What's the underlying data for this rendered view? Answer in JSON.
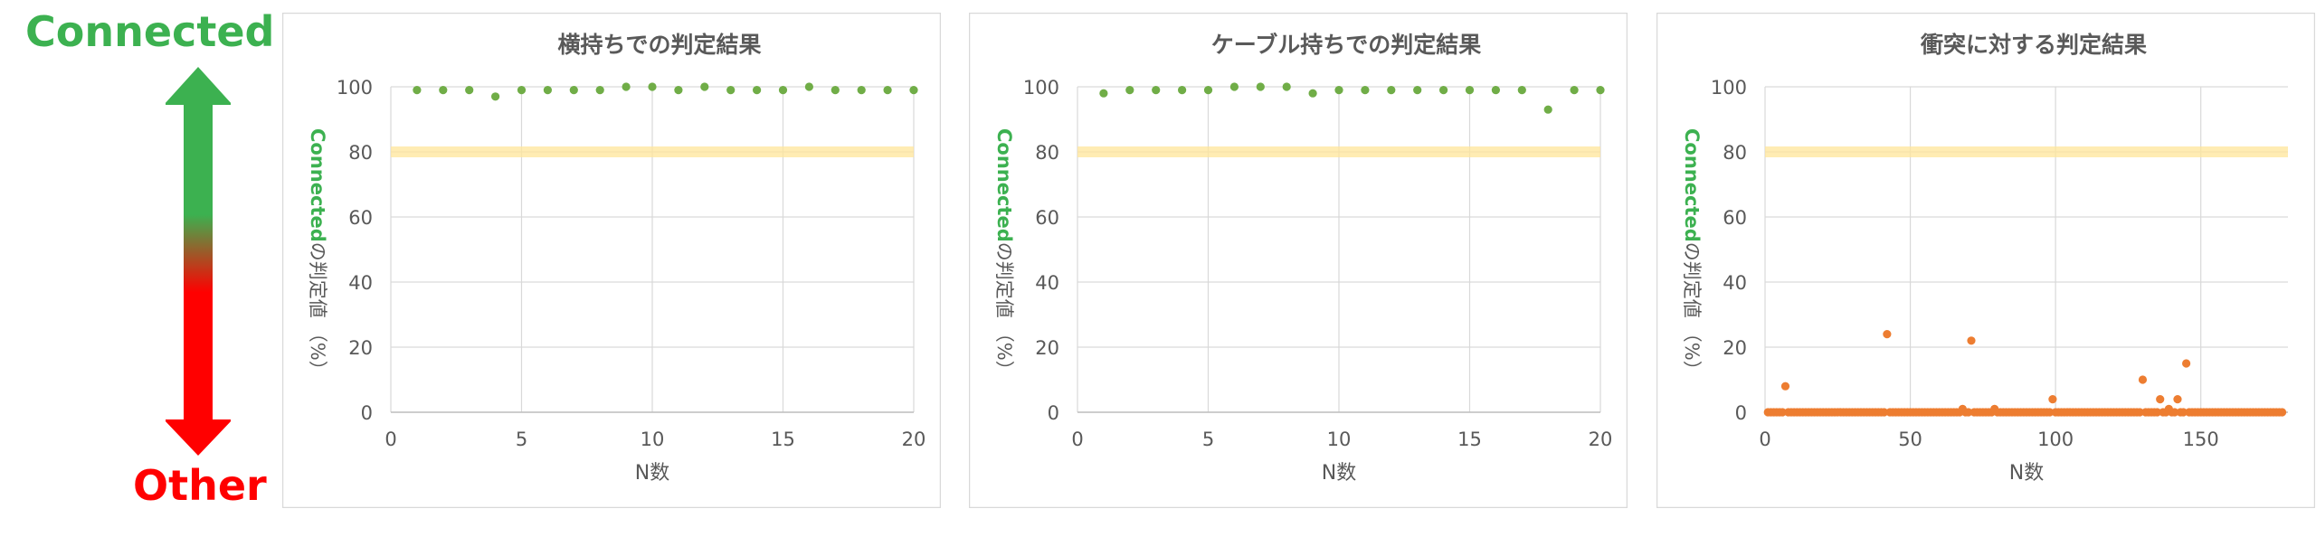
{
  "scale": {
    "top_label": "Connected",
    "bottom_label": "Other",
    "top_color": "#3cb150",
    "bottom_color": "#ff0000"
  },
  "threshold_color": "#ffe699",
  "chart_data": [
    {
      "type": "scatter",
      "title": "横持ちでの判定結果",
      "xlabel": "N数",
      "ylabel_prefix": "Connected",
      "ylabel_suffix": "の判定値",
      "ylabel_paren": "（%）",
      "xlim": [
        0,
        20
      ],
      "ylim": [
        0,
        100
      ],
      "xticks": [
        0,
        5,
        10,
        15,
        20
      ],
      "yticks": [
        0,
        20,
        40,
        60,
        80,
        100
      ],
      "threshold": 80,
      "grid": true,
      "marker_color": "#70ad47",
      "x": [
        1,
        2,
        3,
        4,
        5,
        6,
        7,
        8,
        9,
        10,
        11,
        12,
        13,
        14,
        15,
        16,
        17,
        18,
        19,
        20
      ],
      "y": [
        99,
        99,
        99,
        97,
        99,
        99,
        99,
        99,
        100,
        100,
        99,
        100,
        99,
        99,
        99,
        100,
        99,
        99,
        99,
        99
      ]
    },
    {
      "type": "scatter",
      "title": "ケーブル持ちでの判定結果",
      "xlabel": "N数",
      "ylabel_prefix": "Connected",
      "ylabel_suffix": "の判定値",
      "ylabel_paren": "（%）",
      "xlim": [
        0,
        20
      ],
      "ylim": [
        0,
        100
      ],
      "xticks": [
        0,
        5,
        10,
        15,
        20
      ],
      "yticks": [
        0,
        20,
        40,
        60,
        80,
        100
      ],
      "threshold": 80,
      "grid": true,
      "marker_color": "#70ad47",
      "x": [
        1,
        2,
        3,
        4,
        5,
        6,
        7,
        8,
        9,
        10,
        11,
        12,
        13,
        14,
        15,
        16,
        17,
        18,
        19,
        20
      ],
      "y": [
        98,
        99,
        99,
        99,
        99,
        100,
        100,
        100,
        98,
        99,
        99,
        99,
        99,
        99,
        99,
        99,
        99,
        93,
        99,
        99
      ]
    },
    {
      "type": "scatter",
      "title": "衝突に対する判定結果",
      "xlabel": "N数",
      "ylabel_prefix": "Connected",
      "ylabel_suffix": "の判定値",
      "ylabel_paren": "（%）",
      "xlim": [
        0,
        180
      ],
      "ylim": [
        0,
        100
      ],
      "xticks": [
        0,
        50,
        100,
        150
      ],
      "yticks": [
        0,
        20,
        40,
        60,
        80,
        100
      ],
      "threshold": 80,
      "grid": true,
      "marker_color": "#ed7d31",
      "x": [
        1,
        2,
        3,
        4,
        5,
        6,
        7,
        8,
        9,
        10,
        11,
        12,
        13,
        14,
        15,
        16,
        17,
        18,
        19,
        20,
        21,
        22,
        23,
        24,
        25,
        26,
        27,
        28,
        29,
        30,
        31,
        32,
        33,
        34,
        35,
        36,
        37,
        38,
        39,
        40,
        41,
        42,
        43,
        44,
        45,
        46,
        47,
        48,
        49,
        50,
        51,
        52,
        53,
        54,
        55,
        56,
        57,
        58,
        59,
        60,
        61,
        62,
        63,
        64,
        65,
        66,
        67,
        68,
        69,
        70,
        71,
        72,
        73,
        74,
        75,
        76,
        77,
        78,
        79,
        80,
        81,
        82,
        83,
        84,
        85,
        86,
        87,
        88,
        89,
        90,
        91,
        92,
        93,
        94,
        95,
        96,
        97,
        98,
        99,
        100,
        101,
        102,
        103,
        104,
        105,
        106,
        107,
        108,
        109,
        110,
        111,
        112,
        113,
        114,
        115,
        116,
        117,
        118,
        119,
        120,
        121,
        122,
        123,
        124,
        125,
        126,
        127,
        128,
        129,
        130,
        131,
        132,
        133,
        134,
        135,
        136,
        137,
        138,
        139,
        140,
        141,
        142,
        143,
        144,
        145,
        146,
        147,
        148,
        149,
        150,
        151,
        152,
        153,
        154,
        155,
        156,
        157,
        158,
        159,
        160,
        161,
        162,
        163,
        164,
        165,
        166,
        167,
        168,
        169,
        170,
        171,
        172,
        173,
        174,
        175,
        176,
        177,
        178
      ],
      "y": [
        0,
        0,
        0,
        0,
        0,
        0,
        8,
        0,
        0,
        0,
        0,
        0,
        0,
        0,
        0,
        0,
        0,
        0,
        0,
        0,
        0,
        0,
        0,
        0,
        0,
        0,
        0,
        0,
        0,
        0,
        0,
        0,
        0,
        0,
        0,
        0,
        0,
        0,
        0,
        0,
        0,
        24,
        0,
        0,
        0,
        0,
        0,
        0,
        0,
        0,
        0,
        0,
        0,
        0,
        0,
        0,
        0,
        0,
        0,
        0,
        0,
        0,
        0,
        0,
        0,
        0,
        0,
        1,
        0,
        0,
        22,
        0,
        0,
        0,
        0,
        0,
        0,
        0,
        1,
        0,
        0,
        0,
        0,
        0,
        0,
        0,
        0,
        0,
        0,
        0,
        0,
        0,
        0,
        0,
        0,
        0,
        0,
        0,
        4,
        0,
        0,
        0,
        0,
        0,
        0,
        0,
        0,
        0,
        0,
        0,
        0,
        0,
        0,
        0,
        0,
        0,
        0,
        0,
        0,
        0,
        0,
        0,
        0,
        0,
        0,
        0,
        0,
        0,
        0,
        10,
        0,
        0,
        0,
        0,
        0,
        4,
        0,
        0,
        1,
        0,
        0,
        4,
        0,
        0,
        15,
        0,
        0,
        0,
        0,
        0,
        0,
        0,
        0,
        0,
        0,
        0,
        0,
        0,
        0,
        0,
        0,
        0,
        0,
        0,
        0,
        0,
        0,
        0,
        0,
        0,
        0,
        0,
        0,
        0,
        0,
        0,
        0,
        0
      ]
    }
  ]
}
